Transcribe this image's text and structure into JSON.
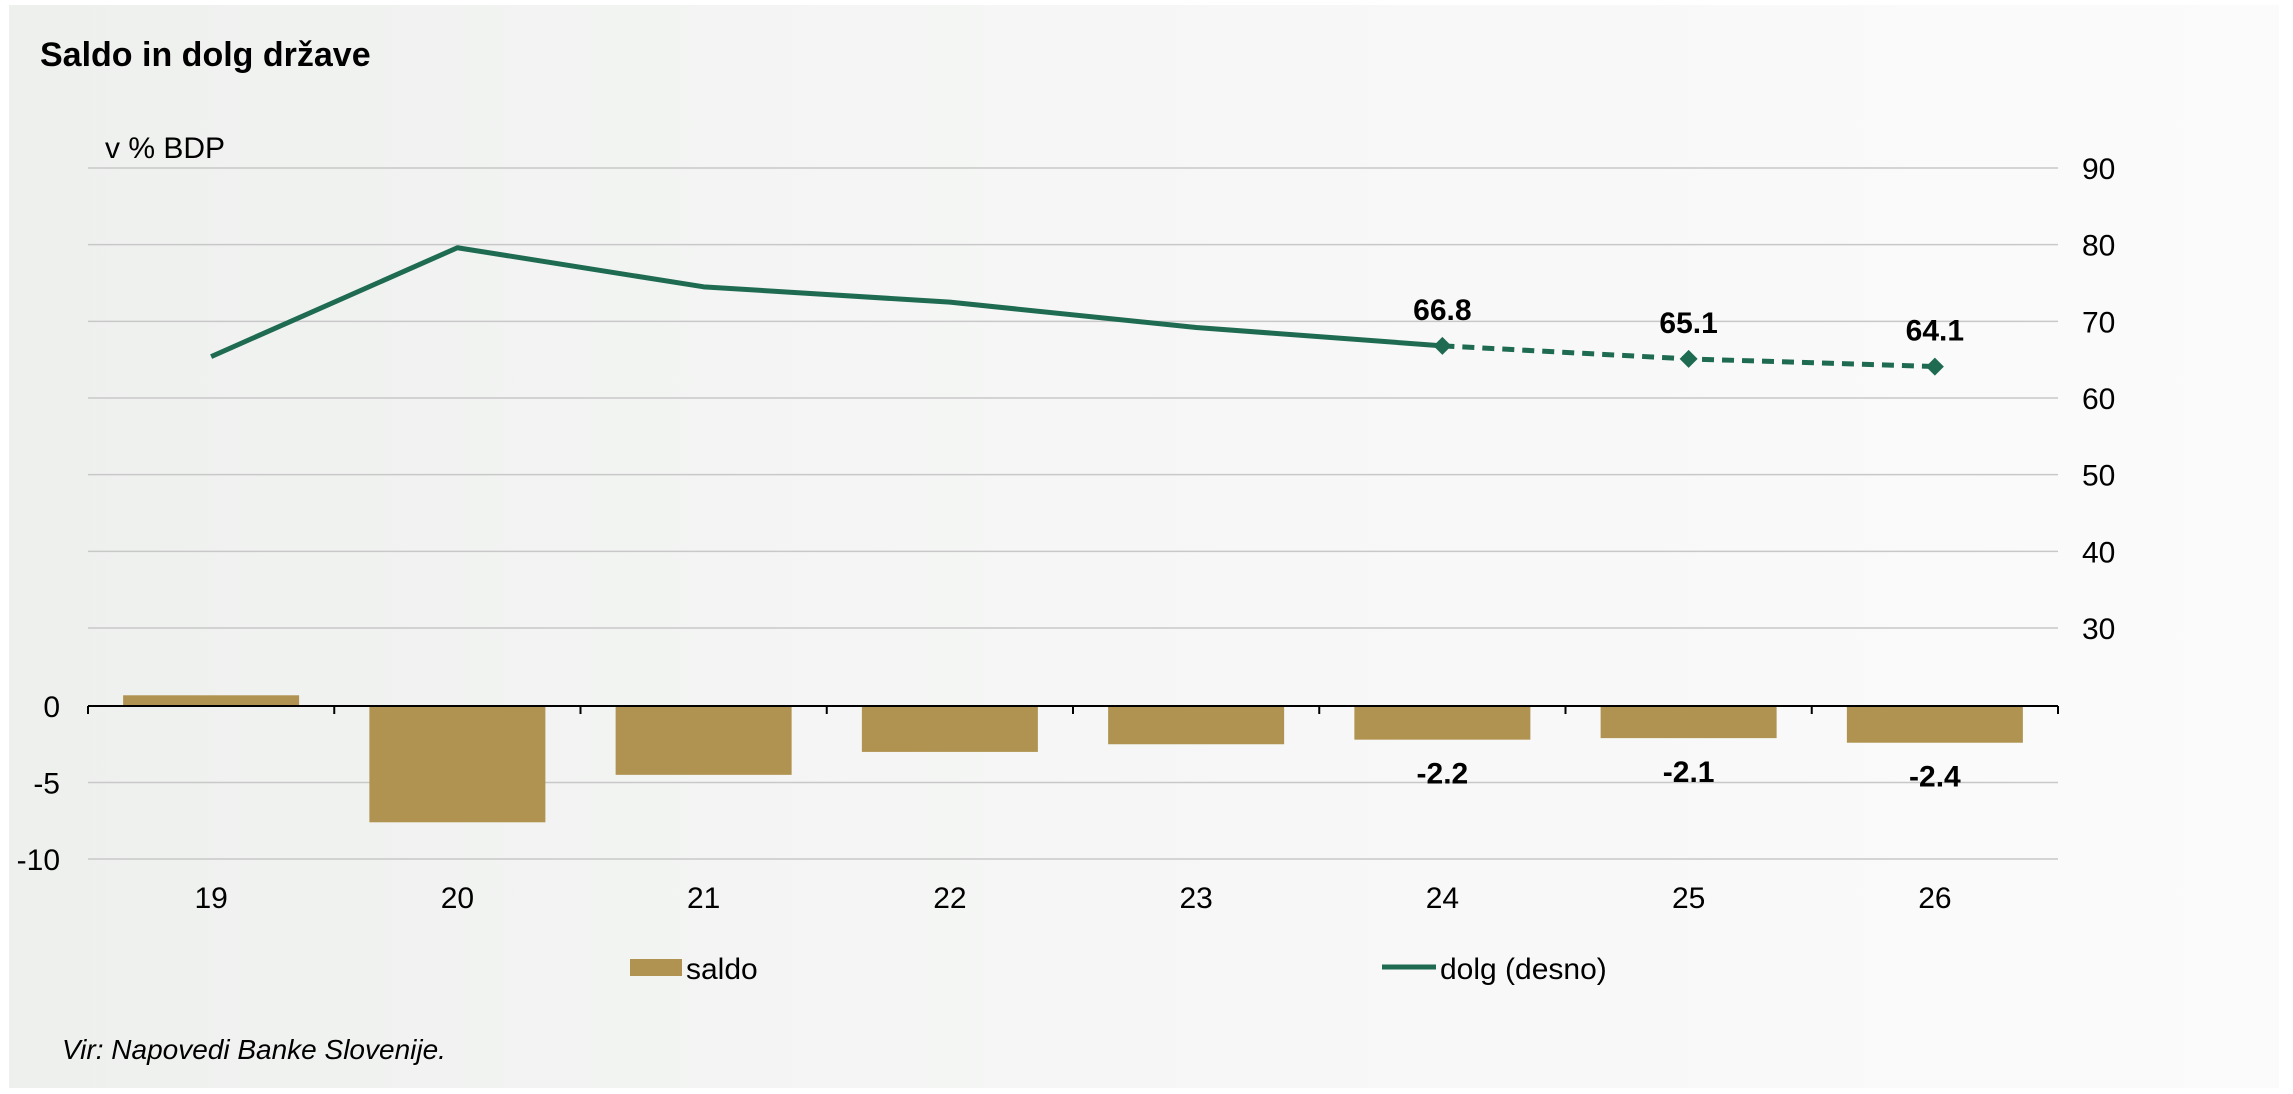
{
  "chart_data": {
    "type": "bar+line",
    "title": "Saldo in dolg države",
    "unit_label": "v % BDP",
    "categories": [
      "19",
      "20",
      "21",
      "22",
      "23",
      "24",
      "25",
      "26"
    ],
    "series": [
      {
        "name": "saldo",
        "type": "bar",
        "axis": "left",
        "values": [
          0.7,
          -7.6,
          -4.5,
          -3.0,
          -2.5,
          -2.2,
          -2.1,
          -2.4
        ],
        "data_labels": [
          null,
          null,
          null,
          null,
          null,
          "-2.2",
          "-2.1",
          "-2.4"
        ],
        "color": "#b09350"
      },
      {
        "name": "dolg (desno)",
        "type": "line",
        "axis": "right",
        "values": [
          65.4,
          79.6,
          74.5,
          72.5,
          69.2,
          66.8,
          65.1,
          64.1
        ],
        "data_labels": [
          null,
          null,
          null,
          null,
          null,
          "66.8",
          "65.1",
          "64.1"
        ],
        "projection_start_index": 5,
        "color": "#1f6b52"
      }
    ],
    "left_axis": {
      "range": [
        -10,
        0
      ],
      "ticks": [
        "0",
        "-5",
        "-10"
      ]
    },
    "right_axis": {
      "range": [
        30,
        90
      ],
      "ticks": [
        "90",
        "80",
        "70",
        "60",
        "50",
        "40",
        "30"
      ]
    },
    "grid": true,
    "legend_position": "bottom"
  },
  "source": "Vir: Napovedi Banke Slovenije."
}
